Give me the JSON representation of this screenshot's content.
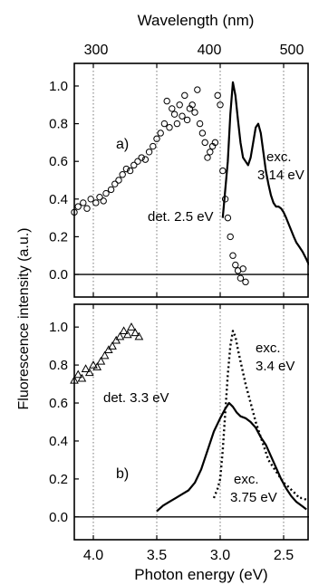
{
  "figure": {
    "top_axis_label": "Wavelength (nm)",
    "top_ticks": [
      "300",
      "400",
      "500"
    ],
    "y_label": "Fluorescence intensity (a.u.)",
    "x_label": "Photon energy (eV)"
  },
  "chart_data": [
    {
      "id": "panel-a",
      "type": "scatter",
      "panel_label": "a)",
      "x_axis": "Photon energy (eV)",
      "x_reversed": true,
      "xlim": [
        4.15,
        2.3
      ],
      "ylim": [
        -0.12,
        1.12
      ],
      "yticks": [
        "0.0",
        "0.2",
        "0.4",
        "0.6",
        "0.8",
        "1.0"
      ],
      "top_axis": {
        "label": "Wavelength (nm)",
        "ticks": [
          "300",
          "400",
          "500"
        ]
      },
      "grid": "vertical dotted lines at 4.0, 3.5, 3.0, 2.5 eV",
      "annotations": [
        "det. 2.5 eV",
        "exc.",
        "3.14 eV"
      ],
      "series": [
        {
          "name": "det. 2.5 eV",
          "style": "open circles",
          "x": [
            4.15,
            4.12,
            4.08,
            4.05,
            4.02,
            3.98,
            3.95,
            3.92,
            3.9,
            3.86,
            3.83,
            3.8,
            3.77,
            3.74,
            3.71,
            3.68,
            3.65,
            3.62,
            3.59,
            3.56,
            3.53,
            3.5,
            3.47,
            3.44,
            3.42,
            3.4,
            3.38,
            3.36,
            3.34,
            3.32,
            3.3,
            3.28,
            3.26,
            3.24,
            3.22,
            3.2,
            3.18,
            3.16,
            3.14,
            3.12,
            3.1,
            3.08,
            3.06,
            3.04,
            3.02,
            3.0,
            2.98,
            2.96,
            2.94,
            2.92,
            2.9,
            2.88,
            2.86,
            2.84,
            2.82,
            2.8
          ],
          "y": [
            0.33,
            0.36,
            0.38,
            0.35,
            0.4,
            0.38,
            0.41,
            0.39,
            0.43,
            0.45,
            0.48,
            0.5,
            0.53,
            0.56,
            0.55,
            0.58,
            0.6,
            0.62,
            0.61,
            0.65,
            0.68,
            0.72,
            0.75,
            0.8,
            0.92,
            0.78,
            0.88,
            0.85,
            0.8,
            0.9,
            0.84,
            0.95,
            0.82,
            0.88,
            0.9,
            0.86,
            0.98,
            0.8,
            0.75,
            0.7,
            0.62,
            0.65,
            0.68,
            0.7,
            0.95,
            0.9,
            0.55,
            0.4,
            0.3,
            0.2,
            0.1,
            0.05,
            0.02,
            -0.02,
            0.03,
            -0.04
          ]
        },
        {
          "name": "exc. 3.14 eV",
          "style": "solid line",
          "x": [
            2.98,
            2.96,
            2.94,
            2.92,
            2.9,
            2.88,
            2.86,
            2.84,
            2.82,
            2.8,
            2.78,
            2.76,
            2.74,
            2.72,
            2.7,
            2.68,
            2.66,
            2.64,
            2.62,
            2.6,
            2.58,
            2.56,
            2.54,
            2.52,
            2.5,
            2.48,
            2.45,
            2.42,
            2.4,
            2.38,
            2.35,
            2.32,
            2.3
          ],
          "y": [
            0.3,
            0.45,
            0.6,
            0.85,
            1.02,
            0.95,
            0.82,
            0.7,
            0.62,
            0.6,
            0.58,
            0.62,
            0.7,
            0.78,
            0.8,
            0.75,
            0.65,
            0.55,
            0.48,
            0.42,
            0.38,
            0.36,
            0.36,
            0.35,
            0.33,
            0.3,
            0.25,
            0.2,
            0.17,
            0.15,
            0.12,
            0.08,
            0.05
          ]
        }
      ]
    },
    {
      "id": "panel-b",
      "type": "scatter",
      "panel_label": "b)",
      "x_axis": "Photon energy (eV)",
      "x_reversed": true,
      "xlim": [
        4.15,
        2.3
      ],
      "ylim": [
        -0.12,
        1.12
      ],
      "xticks": [
        "4.0",
        "3.5",
        "3.0",
        "2.5"
      ],
      "yticks": [
        "0.0",
        "0.2",
        "0.4",
        "0.6",
        "0.8",
        "1.0"
      ],
      "grid": "vertical dotted lines at 4.0, 3.5, 3.0, 2.5 eV",
      "annotations": [
        "det. 3.3 eV",
        "exc.",
        "3.4 eV",
        "exc.",
        "3.75 eV"
      ],
      "series": [
        {
          "name": "det. 3.3 eV",
          "style": "open triangles",
          "x": [
            4.15,
            4.12,
            4.09,
            4.06,
            4.03,
            4.0,
            3.97,
            3.94,
            3.91,
            3.88,
            3.85,
            3.82,
            3.79,
            3.76,
            3.73,
            3.7,
            3.67,
            3.64
          ],
          "y": [
            0.72,
            0.75,
            0.73,
            0.78,
            0.76,
            0.8,
            0.79,
            0.82,
            0.85,
            0.88,
            0.9,
            0.93,
            0.95,
            0.98,
            0.96,
            1.0,
            0.97,
            0.95
          ]
        },
        {
          "name": "exc. 3.4 eV",
          "style": "dotted line",
          "x": [
            3.05,
            3.02,
            3.0,
            2.98,
            2.96,
            2.94,
            2.92,
            2.9,
            2.88,
            2.86,
            2.84,
            2.82,
            2.8,
            2.78,
            2.76,
            2.74,
            2.72,
            2.7,
            2.68,
            2.66,
            2.64,
            2.62,
            2.6,
            2.58,
            2.56,
            2.54,
            2.52,
            2.5,
            2.48,
            2.45,
            2.42,
            2.4,
            2.38,
            2.35,
            2.32
          ],
          "y": [
            0.1,
            0.15,
            0.2,
            0.35,
            0.55,
            0.75,
            0.9,
            0.98,
            0.95,
            0.88,
            0.82,
            0.76,
            0.7,
            0.65,
            0.6,
            0.55,
            0.5,
            0.46,
            0.42,
            0.38,
            0.34,
            0.3,
            0.28,
            0.26,
            0.24,
            0.22,
            0.2,
            0.18,
            0.17,
            0.15,
            0.13,
            0.12,
            0.1,
            0.1,
            0.09
          ]
        },
        {
          "name": "exc. 3.75 eV",
          "style": "solid line",
          "x": [
            3.5,
            3.45,
            3.4,
            3.35,
            3.3,
            3.25,
            3.2,
            3.15,
            3.1,
            3.05,
            3.0,
            2.96,
            2.93,
            2.9,
            2.87,
            2.84,
            2.8,
            2.76,
            2.72,
            2.68,
            2.64,
            2.6,
            2.56,
            2.52,
            2.48,
            2.44,
            2.4,
            2.36,
            2.32
          ],
          "y": [
            0.03,
            0.06,
            0.08,
            0.1,
            0.12,
            0.14,
            0.18,
            0.25,
            0.35,
            0.45,
            0.52,
            0.57,
            0.6,
            0.58,
            0.55,
            0.53,
            0.52,
            0.5,
            0.47,
            0.42,
            0.38,
            0.32,
            0.26,
            0.2,
            0.15,
            0.11,
            0.08,
            0.06,
            0.04
          ]
        }
      ]
    }
  ]
}
